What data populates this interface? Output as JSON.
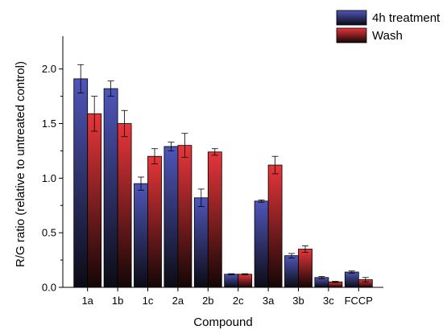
{
  "chart_data": {
    "type": "bar",
    "title": "",
    "xlabel": "Compound",
    "ylabel": "R/G ratio (relative to untreated control)",
    "ylim": [
      0,
      2.3
    ],
    "yticks": [
      0.0,
      0.5,
      1.0,
      1.5,
      2.0
    ],
    "ytick_labels": [
      "0.0",
      "0.5",
      "1.0",
      "1.5",
      "2.0"
    ],
    "categories": [
      "1a",
      "1b",
      "1c",
      "2a",
      "2b",
      "2c",
      "3a",
      "3b",
      "3c",
      "FCCP"
    ],
    "legend_position": "top-right",
    "grid": false,
    "series": [
      {
        "name": "4h treatment",
        "color_top": "#4f56b8",
        "color_bottom": "#0b0b14",
        "values": [
          1.91,
          1.82,
          0.95,
          1.29,
          0.82,
          0.12,
          0.79,
          0.29,
          0.09,
          0.14
        ],
        "errors": [
          0.13,
          0.07,
          0.06,
          0.04,
          0.08,
          0.005,
          0.01,
          0.02,
          0.01,
          0.01
        ]
      },
      {
        "name": "Wash",
        "color_top": "#e8363a",
        "color_bottom": "#140606",
        "values": [
          1.59,
          1.5,
          1.2,
          1.3,
          1.24,
          0.12,
          1.12,
          0.35,
          0.05,
          0.07
        ],
        "errors": [
          0.16,
          0.12,
          0.07,
          0.11,
          0.03,
          0.005,
          0.08,
          0.03,
          0.005,
          0.02
        ]
      }
    ]
  }
}
